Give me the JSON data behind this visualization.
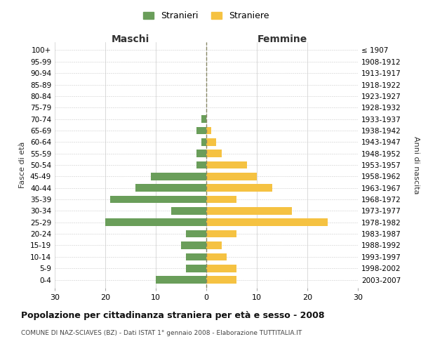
{
  "age_groups": [
    "0-4",
    "5-9",
    "10-14",
    "15-19",
    "20-24",
    "25-29",
    "30-34",
    "35-39",
    "40-44",
    "45-49",
    "50-54",
    "55-59",
    "60-64",
    "65-69",
    "70-74",
    "75-79",
    "80-84",
    "85-89",
    "90-94",
    "95-99",
    "100+"
  ],
  "birth_years": [
    "2003-2007",
    "1998-2002",
    "1993-1997",
    "1988-1992",
    "1983-1987",
    "1978-1982",
    "1973-1977",
    "1968-1972",
    "1963-1967",
    "1958-1962",
    "1953-1957",
    "1948-1952",
    "1943-1947",
    "1938-1942",
    "1933-1937",
    "1928-1932",
    "1923-1927",
    "1918-1922",
    "1913-1917",
    "1908-1912",
    "≤ 1907"
  ],
  "males": [
    10,
    4,
    4,
    5,
    4,
    20,
    7,
    19,
    14,
    11,
    2,
    2,
    1,
    2,
    1,
    0,
    0,
    0,
    0,
    0,
    0
  ],
  "females": [
    6,
    6,
    4,
    3,
    6,
    24,
    17,
    6,
    13,
    10,
    8,
    3,
    2,
    1,
    0,
    0,
    0,
    0,
    0,
    0,
    0
  ],
  "male_color": "#6a9e5a",
  "female_color": "#f5c242",
  "background_color": "#ffffff",
  "grid_color": "#cccccc",
  "center_line_color": "#888866",
  "title": "Popolazione per cittadinanza straniera per età e sesso - 2008",
  "subtitle": "COMUNE DI NAZ-SCIAVES (BZ) - Dati ISTAT 1° gennaio 2008 - Elaborazione TUTTITALIA.IT",
  "xlabel_left": "Maschi",
  "xlabel_right": "Femmine",
  "ylabel_left": "Fasce di età",
  "ylabel_right": "Anni di nascita",
  "legend_male": "Stranieri",
  "legend_female": "Straniere",
  "xlim": 30,
  "tick_step": 10
}
